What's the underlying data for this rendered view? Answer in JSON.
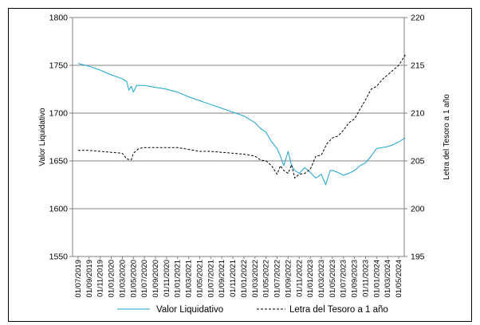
{
  "chart_data": {
    "type": "line",
    "title": "",
    "ylabel_left": "Valor Liquidativo",
    "ylabel_right": "Letra del Tesoro a 1 año",
    "ylim_left": [
      1550,
      1800
    ],
    "ylim_right": [
      195,
      220
    ],
    "yticks_left": [
      "1550",
      "1600",
      "1650",
      "1700",
      "1750",
      "1800"
    ],
    "yticks_right": [
      "195",
      "200",
      "205",
      "210",
      "215",
      "220"
    ],
    "x_categories": [
      "01/07/2019",
      "01/09/2019",
      "01/11/2019",
      "01/01/2020",
      "01/03/2020",
      "01/05/2020",
      "01/07/2020",
      "01/09/2020",
      "01/11/2020",
      "01/01/2021",
      "01/03/2021",
      "01/05/2021",
      "01/07/2021",
      "01/09/2021",
      "01/11/2021",
      "01/01/2022",
      "01/03/2022",
      "01/05/2022",
      "01/07/2022",
      "01/09/2022",
      "01/11/2022",
      "01/01/2023",
      "01/03/2023",
      "01/05/2023",
      "01/07/2023",
      "01/09/2023",
      "01/11/2023",
      "01/01/2024",
      "01/03/2024",
      "01/05/2024"
    ],
    "grid": true,
    "legend_position": "bottom",
    "series": [
      {
        "name": "Valor Liquidativo",
        "axis": "left",
        "color": "#1ba3d3",
        "style": "solid",
        "points": [
          [
            0,
            1752
          ],
          [
            1,
            1749
          ],
          [
            2,
            1745
          ],
          [
            3,
            1740
          ],
          [
            4,
            1736
          ],
          [
            4.4,
            1733
          ],
          [
            4.6,
            1724
          ],
          [
            4.8,
            1728
          ],
          [
            5,
            1722
          ],
          [
            5.3,
            1729
          ],
          [
            6,
            1729
          ],
          [
            7,
            1727
          ],
          [
            8,
            1725
          ],
          [
            9,
            1722
          ],
          [
            10,
            1717
          ],
          [
            11,
            1713
          ],
          [
            12,
            1709
          ],
          [
            13,
            1705
          ],
          [
            14,
            1701
          ],
          [
            15,
            1697
          ],
          [
            16,
            1690
          ],
          [
            16.5,
            1684
          ],
          [
            17,
            1680
          ],
          [
            17.5,
            1670
          ],
          [
            18,
            1663
          ],
          [
            18.3,
            1655
          ],
          [
            18.6,
            1645
          ],
          [
            19,
            1660
          ],
          [
            19.3,
            1645
          ],
          [
            19.6,
            1640
          ],
          [
            20,
            1637
          ],
          [
            20.5,
            1643
          ],
          [
            21,
            1638
          ],
          [
            21.5,
            1632
          ],
          [
            22,
            1636
          ],
          [
            22.4,
            1625
          ],
          [
            22.8,
            1640
          ],
          [
            23,
            1640
          ],
          [
            23.5,
            1638
          ],
          [
            24,
            1635
          ],
          [
            24.5,
            1637
          ],
          [
            25,
            1640
          ],
          [
            25.5,
            1645
          ],
          [
            26,
            1648
          ],
          [
            26.5,
            1655
          ],
          [
            27,
            1663
          ],
          [
            27.5,
            1664
          ],
          [
            28,
            1665
          ],
          [
            28.5,
            1667
          ],
          [
            29,
            1670
          ],
          [
            29.6,
            1674
          ]
        ]
      },
      {
        "name": "Letra del Tesoro a 1 año",
        "axis": "right",
        "color": "#000000",
        "style": "dashed",
        "points": [
          [
            0,
            206.1
          ],
          [
            1,
            206.1
          ],
          [
            2,
            206
          ],
          [
            3,
            205.9
          ],
          [
            4,
            205.8
          ],
          [
            4.4,
            205.2
          ],
          [
            4.8,
            205.1
          ],
          [
            5,
            205.8
          ],
          [
            5.5,
            206.3
          ],
          [
            6,
            206.4
          ],
          [
            7,
            206.4
          ],
          [
            8,
            206.4
          ],
          [
            9,
            206.4
          ],
          [
            10,
            206.2
          ],
          [
            11,
            206
          ],
          [
            12,
            206
          ],
          [
            13,
            205.9
          ],
          [
            14,
            205.8
          ],
          [
            15,
            205.7
          ],
          [
            16,
            205.5
          ],
          [
            16.5,
            205.1
          ],
          [
            17,
            205
          ],
          [
            17.5,
            204.5
          ],
          [
            18,
            203.6
          ],
          [
            18.3,
            204.5
          ],
          [
            18.6,
            204
          ],
          [
            19,
            203.7
          ],
          [
            19.3,
            204.6
          ],
          [
            19.6,
            203.2
          ],
          [
            20,
            203.6
          ],
          [
            20.5,
            203.7
          ],
          [
            21,
            204.1
          ],
          [
            21.5,
            205.5
          ],
          [
            22,
            205.6
          ],
          [
            22.5,
            206.8
          ],
          [
            23,
            207.4
          ],
          [
            23.5,
            207.6
          ],
          [
            24,
            208.2
          ],
          [
            24.5,
            209
          ],
          [
            25,
            209.4
          ],
          [
            25.5,
            210.4
          ],
          [
            26,
            211.4
          ],
          [
            26.5,
            212.5
          ],
          [
            27,
            212.8
          ],
          [
            27.5,
            213.5
          ],
          [
            28,
            214
          ],
          [
            28.5,
            214.5
          ],
          [
            29,
            215
          ],
          [
            29.6,
            216.1
          ]
        ]
      }
    ]
  }
}
